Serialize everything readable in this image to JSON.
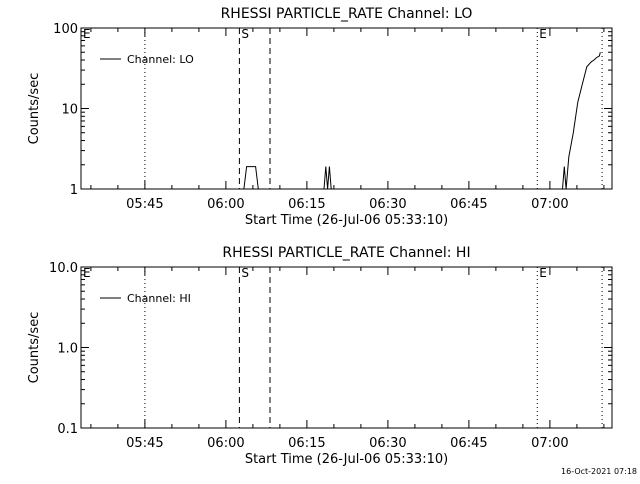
{
  "chart_data": [
    {
      "type": "line",
      "title": "RHESSI PARTICLE_RATE Channel: LO",
      "xlabel": "Start Time (26-Jul-06 05:33:10)",
      "ylabel": "Counts/sec",
      "y_scale": "log",
      "ylim": [
        1,
        100
      ],
      "y_ticks": [
        1,
        10,
        100
      ],
      "y_tick_labels": [
        "1",
        "10",
        "100"
      ],
      "xlim": [
        "05:33:10",
        "07:11:30"
      ],
      "x_ticks": [
        "05:45",
        "06:00",
        "06:15",
        "06:30",
        "06:45",
        "07:00"
      ],
      "legend": {
        "placement": "top-left",
        "entries": [
          "Channel: LO"
        ]
      },
      "grid": false,
      "markers": [
        {
          "label": "E",
          "time": "05:33:10",
          "style": "dotted"
        },
        {
          "label": "",
          "time": "05:45:00",
          "style": "dotted"
        },
        {
          "label": "S",
          "time": "06:02:30",
          "style": "dashed"
        },
        {
          "label": "",
          "time": "06:08:10",
          "style": "dashed"
        },
        {
          "label": "E",
          "time": "06:57:40",
          "style": "dotted"
        },
        {
          "label": "",
          "time": "07:09:40",
          "style": "dotted"
        }
      ],
      "series": [
        {
          "name": "Channel: LO",
          "segments": [
            {
              "x": [
                "06:03:20",
                "06:03:50",
                "06:05:30",
                "06:06:00"
              ],
              "y": [
                1,
                1.9,
                1.9,
                1
              ]
            },
            {
              "x": [
                "06:18:10",
                "06:18:30",
                "06:18:50",
                "06:19:10",
                "06:19:30"
              ],
              "y": [
                1,
                1.9,
                1,
                1.9,
                1
              ]
            },
            {
              "x": [
                "07:02:20",
                "07:02:40",
                "07:03:00",
                "07:03:30",
                "07:04:20",
                "07:05:10",
                "07:06:00",
                "07:06:50",
                "07:07:40",
                "07:08:10",
                "07:08:40",
                "07:09:10",
                "07:09:20"
              ],
              "y": [
                1,
                1.9,
                1,
                2.5,
                5,
                12,
                20,
                33,
                38,
                40,
                43,
                45,
                50
              ]
            }
          ]
        }
      ]
    },
    {
      "type": "line",
      "title": "RHESSI PARTICLE_RATE Channel: HI",
      "xlabel": "Start Time (26-Jul-06 05:33:10)",
      "ylabel": "Counts/sec",
      "y_scale": "log",
      "ylim": [
        0.1,
        10
      ],
      "y_ticks": [
        0.1,
        1,
        10
      ],
      "y_tick_labels": [
        "0.1",
        "1.0",
        "10.0"
      ],
      "xlim": [
        "05:33:10",
        "07:11:30"
      ],
      "x_ticks": [
        "05:45",
        "06:00",
        "06:15",
        "06:30",
        "06:45",
        "07:00"
      ],
      "legend": {
        "placement": "top-left",
        "entries": [
          "Channel: HI"
        ]
      },
      "grid": false,
      "markers": [
        {
          "label": "E",
          "time": "05:33:10",
          "style": "dotted"
        },
        {
          "label": "",
          "time": "05:45:00",
          "style": "dotted"
        },
        {
          "label": "S",
          "time": "06:02:30",
          "style": "dashed"
        },
        {
          "label": "",
          "time": "06:08:10",
          "style": "dashed"
        },
        {
          "label": "E",
          "time": "06:57:40",
          "style": "dotted"
        },
        {
          "label": "",
          "time": "07:09:40",
          "style": "dotted"
        }
      ],
      "series": [
        {
          "name": "Channel: HI",
          "segments": []
        }
      ]
    }
  ],
  "footer": {
    "timestamp": "16-Oct-2021 07:18"
  }
}
